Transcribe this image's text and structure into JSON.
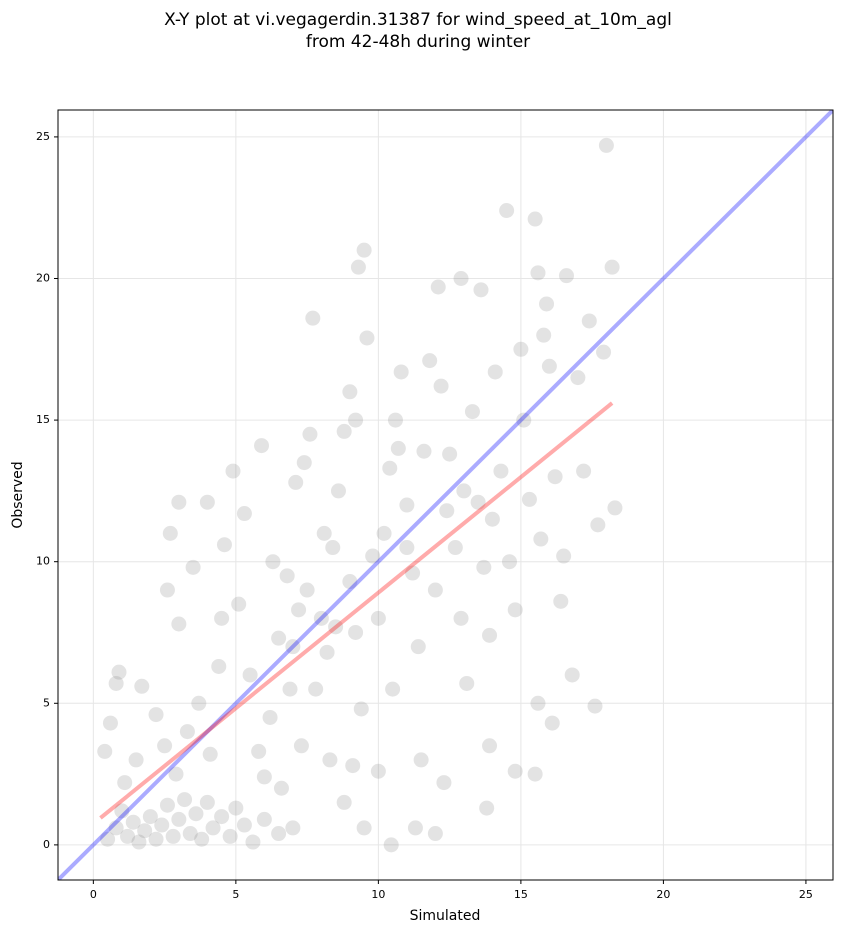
{
  "chart_data": {
    "type": "scatter",
    "title": [
      "X-Y plot at vi.vegagerdin.31387 for wind_speed_at_10m_agl",
      "from 42-48h during winter"
    ],
    "x_label": "Simulated",
    "y_label": "Observed",
    "xlim": [
      -1.24,
      25.95
    ],
    "ylim": [
      -1.24,
      25.95
    ],
    "xticks": [
      0,
      5,
      10,
      15,
      20,
      25
    ],
    "yticks": [
      0,
      5,
      10,
      15,
      20,
      25
    ],
    "grid": true,
    "series": [
      {
        "type": "scatter",
        "color": "#808080",
        "x": [
          0.5,
          0.8,
          1.0,
          1.2,
          1.4,
          1.6,
          1.8,
          2.0,
          2.2,
          2.4,
          2.6,
          2.8,
          3.0,
          3.2,
          3.4,
          3.6,
          3.8,
          4.0,
          4.2,
          4.5,
          4.8,
          5.0,
          5.3,
          5.6,
          6.0,
          6.5,
          7.0,
          1.1,
          1.5,
          0.4,
          0.6,
          0.8,
          0.9,
          1.7,
          2.2,
          2.5,
          2.9,
          3.3,
          3.7,
          4.1,
          4.4,
          3.0,
          2.6,
          3.5,
          2.7,
          3.0,
          4.0,
          4.6,
          4.9,
          5.3,
          5.1,
          5.5,
          5.8,
          6.2,
          6.5,
          6.8,
          7.1,
          7.4,
          7.7,
          7.6,
          6.0,
          6.6,
          7.3,
          7.8,
          8.0,
          8.2,
          8.4,
          8.6,
          8.8,
          9.0,
          9.2,
          9.3,
          9.5,
          9.6,
          9.0,
          9.2,
          9.4,
          9.1,
          8.8,
          9.5,
          10.45,
          10.0,
          10.2,
          10.4,
          10.6,
          10.8,
          11.0,
          11.2,
          11.4,
          11.3,
          11.5,
          12.0,
          12.3,
          11.8,
          12.1,
          12.2,
          12.5,
          12.7,
          12.9,
          13.1,
          12.9,
          13.6,
          13.3,
          13.5,
          13.7,
          13.9,
          13.8,
          13.9,
          14.1,
          14.3,
          14.5,
          14.6,
          14.8,
          14.8,
          15.0,
          15.1,
          15.3,
          15.5,
          15.6,
          15.5,
          15.6,
          15.7,
          15.8,
          16.0,
          16.1,
          16.2,
          16.4,
          16.6,
          16.8,
          17.0,
          17.2,
          17.4,
          17.6,
          17.7,
          18.0,
          18.2,
          18.3,
          17.9,
          16.5,
          15.9,
          6.3,
          7.0,
          7.5,
          8.3,
          10.0,
          10.5,
          11.6,
          12.4,
          5.9,
          4.5,
          6.9,
          8.5,
          9.8,
          11.0,
          12.0,
          13.0,
          14.0,
          10.7,
          8.1,
          7.2
        ],
        "values": [
          0.2,
          0.6,
          1.2,
          0.3,
          0.8,
          0.1,
          0.5,
          1.0,
          0.2,
          0.7,
          1.4,
          0.3,
          0.9,
          1.6,
          0.4,
          1.1,
          0.2,
          1.5,
          0.6,
          1.0,
          0.3,
          1.3,
          0.7,
          0.1,
          0.9,
          0.4,
          0.6,
          2.2,
          3.0,
          3.3,
          4.3,
          5.7,
          6.1,
          5.6,
          4.6,
          3.5,
          2.5,
          4.0,
          5.0,
          3.2,
          6.3,
          7.8,
          9.0,
          9.8,
          11.0,
          12.1,
          12.1,
          10.6,
          13.2,
          11.7,
          8.5,
          6.0,
          3.3,
          4.5,
          7.3,
          9.5,
          12.8,
          13.5,
          18.6,
          14.5,
          2.4,
          2.0,
          3.5,
          5.5,
          8.0,
          6.8,
          10.5,
          12.5,
          14.6,
          16.0,
          15.0,
          20.4,
          21.0,
          17.9,
          9.3,
          7.5,
          4.8,
          2.8,
          1.5,
          0.6,
          0.0,
          2.6,
          11.0,
          13.3,
          15.0,
          16.7,
          12.0,
          9.6,
          7.0,
          0.6,
          3.0,
          0.4,
          2.2,
          17.1,
          19.7,
          16.2,
          13.8,
          10.5,
          8.0,
          5.7,
          20.0,
          19.6,
          15.3,
          12.1,
          9.8,
          7.4,
          1.3,
          3.5,
          16.7,
          13.2,
          22.4,
          10.0,
          8.3,
          2.6,
          17.5,
          15.0,
          12.2,
          22.1,
          20.2,
          2.5,
          5.0,
          10.8,
          18.0,
          16.9,
          4.3,
          13.0,
          8.6,
          20.1,
          6.0,
          16.5,
          13.2,
          18.5,
          4.9,
          11.3,
          24.7,
          20.4,
          11.9,
          17.4,
          10.2,
          19.1,
          10.0,
          7.0,
          9.0,
          3.0,
          8.0,
          5.5,
          13.9,
          11.8,
          14.1,
          8.0,
          5.5,
          7.7,
          10.2,
          10.5,
          9.0,
          12.5,
          11.5,
          14.0,
          11.0,
          8.3
        ]
      },
      {
        "type": "line",
        "color": "#0000ff",
        "x": [
          -1.24,
          25.95
        ],
        "values": [
          -1.24,
          25.95
        ]
      },
      {
        "type": "line",
        "color": "#ff0000",
        "x": [
          0.25,
          18.2
        ],
        "values": [
          0.95,
          15.6
        ]
      }
    ]
  }
}
